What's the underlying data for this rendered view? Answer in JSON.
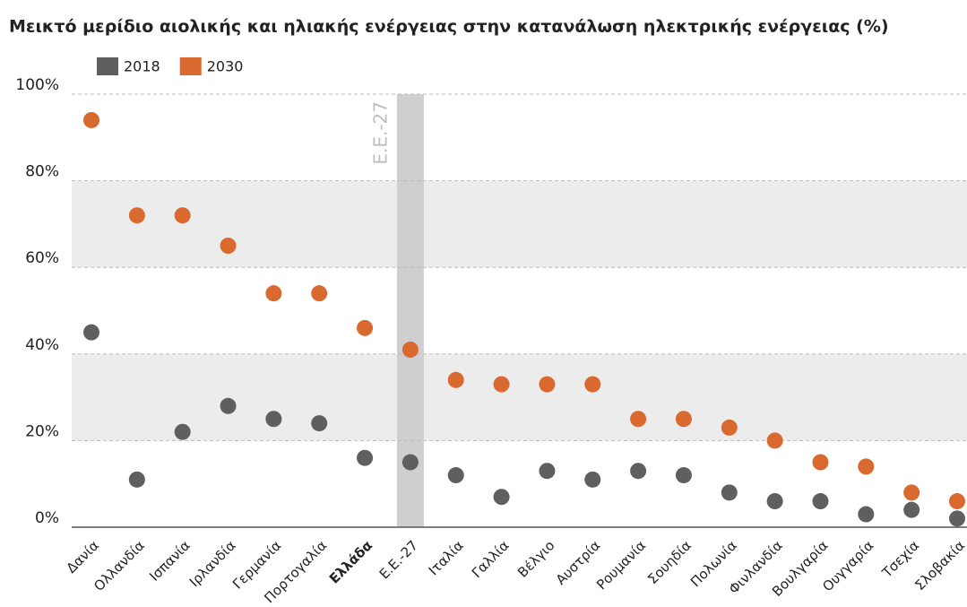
{
  "chart_data": {
    "type": "dot",
    "title": "Μεικτό μερίδιο αιολικής και ηλιακής ενέργειας στην κατανάλωση ηλεκτρικής ενέργειας (%)",
    "categories": [
      "Δανία",
      "Ολλανδία",
      "Ισπανία",
      "Ιρλανδία",
      "Γερμανία",
      "Πορτογαλία",
      "Ελλάδα",
      "Ε.Ε.-27",
      "Ιταλία",
      "Γαλλία",
      "Βέλγιο",
      "Αυστρία",
      "Ρουμανία",
      "Σουηδία",
      "Πολωνία",
      "Φινλανδία",
      "Βουλγαρία",
      "Ουγγαρία",
      "Τσεχία",
      "Σλοβακία"
    ],
    "series": [
      {
        "name": "2018",
        "color": "#5f5f5f",
        "values": [
          45,
          11,
          22,
          28,
          25,
          24,
          16,
          15,
          12,
          7,
          13,
          11,
          13,
          12,
          8,
          6,
          6,
          3,
          4,
          2
        ]
      },
      {
        "name": "2030",
        "color": "#d9692e",
        "values": [
          94,
          72,
          72,
          65,
          54,
          54,
          46,
          41,
          34,
          33,
          33,
          33,
          25,
          25,
          23,
          20,
          15,
          14,
          8,
          6
        ]
      }
    ],
    "ylim": [
      0,
      100
    ],
    "yticks": [
      {
        "value": 0,
        "label": "0%"
      },
      {
        "value": 20,
        "label": "20%"
      },
      {
        "value": 40,
        "label": "40%"
      },
      {
        "value": 60,
        "label": "60%"
      },
      {
        "value": 80,
        "label": "80%"
      },
      {
        "value": 100,
        "label": "100%"
      }
    ],
    "grid": true,
    "legend": "top-left",
    "bold_categories": [
      6
    ],
    "annotations": [
      {
        "text": "Ε.Ε.-27",
        "category_index": 7
      }
    ]
  }
}
